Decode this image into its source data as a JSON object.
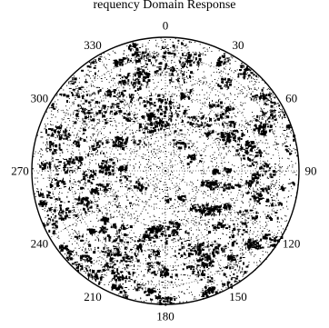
{
  "chart_data": {
    "type": "scatter",
    "projection": "polar",
    "title_fragment": "requency Domain Response",
    "angle_unit": "degrees",
    "angle_zero": "top",
    "angle_direction": "clockwise",
    "theta_ticks": [
      0,
      30,
      60,
      90,
      120,
      150,
      180,
      210,
      240,
      270,
      300,
      330
    ],
    "theta_tick_labels": [
      "0",
      "30",
      "60",
      "90",
      "120",
      "150",
      "180",
      "210",
      "240",
      "270",
      "300",
      "330"
    ],
    "radial_rings": 7,
    "grid": true,
    "marker_color": "#000000",
    "description": "dense black point cloud covering the whole polar disk, heavier near the outer rings"
  }
}
